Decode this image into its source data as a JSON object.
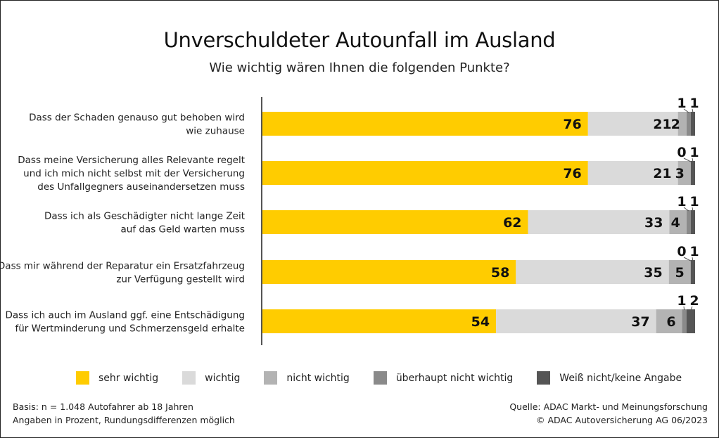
{
  "chart_data": {
    "type": "bar",
    "orientation": "horizontal-stacked",
    "title": "Unverschuldeter Autounfall im Ausland",
    "subtitle": "Wie wichtig wären Ihnen die folgenden Punkte?",
    "unit": "%",
    "categories": [
      [
        "Dass der Schaden genauso gut behoben wird",
        "wie zuhause"
      ],
      [
        "Dass meine Versicherung alles Relevante regelt",
        "und ich mich nicht selbst mit der Versicherung",
        "des Unfallgegners auseinandersetzen muss"
      ],
      [
        "Dass ich als Geschädigter nicht lange Zeit",
        "auf das Geld warten muss"
      ],
      [
        "Dass mir während der Reparatur ein Ersatzfahrzeug",
        "zur Verfügung gestellt wird"
      ],
      [
        "Dass ich auch im Ausland ggf. eine Entschädigung",
        "für Wertminderung und Schmerzensgeld erhalte"
      ]
    ],
    "series": [
      {
        "name": "sehr wichtig",
        "color": "#FFCC00",
        "values": [
          76,
          76,
          62,
          58,
          54
        ]
      },
      {
        "name": "wichtig",
        "color": "#DADADA",
        "values": [
          21,
          21,
          33,
          35,
          37
        ]
      },
      {
        "name": "nicht wichtig",
        "color": "#B3B3B3",
        "values": [
          2,
          3,
          4,
          5,
          6
        ]
      },
      {
        "name": "überhaupt nicht wichtig",
        "color": "#8A8A8A",
        "values": [
          1,
          0,
          1,
          0,
          1
        ]
      },
      {
        "name": "Weiß nicht/keine Angabe",
        "color": "#555555",
        "values": [
          1,
          1,
          1,
          1,
          2
        ]
      }
    ],
    "legend_position": "bottom",
    "grid": false
  },
  "footer": {
    "left": [
      "Basis: n = 1.048 Autofahrer ab 18 Jahren",
      "Angaben in Prozent, Rundungsdifferenzen möglich"
    ],
    "right": [
      "Quelle: ADAC Markt- und Meinungsforschung",
      "© ADAC Autoversicherung AG 06/2023"
    ]
  }
}
